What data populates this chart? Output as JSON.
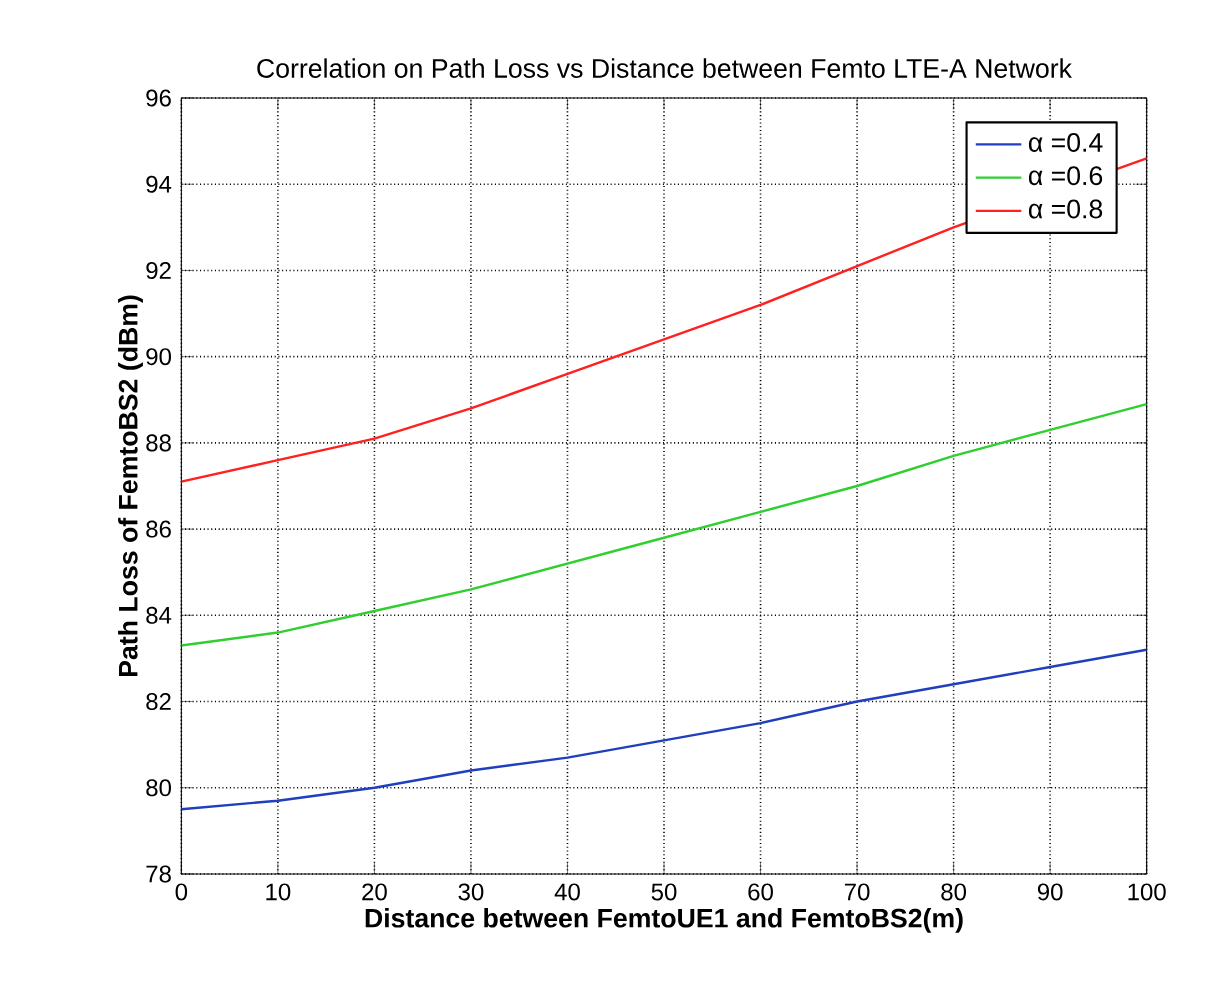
{
  "chart_data": {
    "type": "line",
    "title": "Correlation on Path Loss vs Distance between Femto LTE-A Network",
    "xlabel": "Distance between FemtoUE1 and FemtoBS2(m)",
    "ylabel": "Path Loss of FemtoBS2 (dBm)",
    "x": [
      0,
      10,
      20,
      30,
      40,
      50,
      60,
      70,
      80,
      90,
      100
    ],
    "series": [
      {
        "name": "α =0.4",
        "color": "#1f3fbf",
        "values": [
          79.5,
          79.7,
          80.0,
          80.4,
          80.7,
          81.1,
          81.5,
          82.0,
          82.4,
          82.8,
          83.2
        ]
      },
      {
        "name": "α =0.6",
        "color": "#2fcf2f",
        "values": [
          83.3,
          83.6,
          84.1,
          84.6,
          85.2,
          85.8,
          86.4,
          87.0,
          87.7,
          88.3,
          88.9
        ]
      },
      {
        "name": "α =0.8",
        "color": "#ff2020",
        "values": [
          87.1,
          87.6,
          88.1,
          88.8,
          89.6,
          90.4,
          91.2,
          92.1,
          93.0,
          null,
          94.6
        ]
      }
    ],
    "xlim": [
      0,
      100
    ],
    "ylim": [
      78,
      96
    ],
    "xticks": [
      0,
      10,
      20,
      30,
      40,
      50,
      60,
      70,
      80,
      90,
      100
    ],
    "yticks": [
      78,
      80,
      82,
      84,
      86,
      88,
      90,
      92,
      94,
      96
    ],
    "grid": true,
    "legend": "top right",
    "marker": "none",
    "line_style": "solid"
  }
}
